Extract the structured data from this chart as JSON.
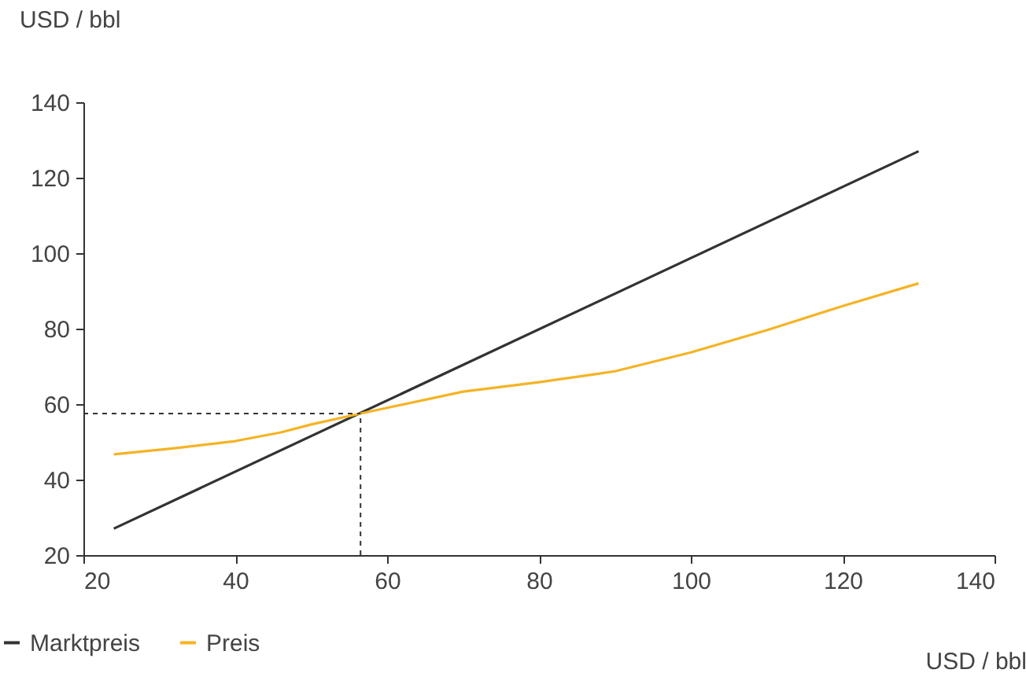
{
  "chart_data": {
    "type": "line",
    "xlabel": "USD / bbl",
    "ylabel": "USD / bbl",
    "xlim": [
      20,
      140
    ],
    "xticks": [
      20,
      40,
      60,
      80,
      100,
      120,
      140
    ],
    "ylim": [
      20,
      140
    ],
    "yticks": [
      20,
      40,
      60,
      80,
      100,
      120,
      140
    ],
    "grid": false,
    "legend": "bottom left",
    "line_style": "solid",
    "series": [
      {
        "name": "Marktpreis",
        "color": "#333333",
        "x": [
          24,
          130
        ],
        "values": [
          27,
          127
        ]
      },
      {
        "name": "Preis",
        "color": "#f5b324",
        "x": [
          24,
          32,
          40,
          46,
          50,
          56.5,
          60,
          70,
          80,
          90,
          100,
          110,
          120,
          130
        ],
        "values": [
          46.7,
          48.3,
          50.2,
          52.5,
          54.6,
          57.5,
          59,
          63.3,
          65.8,
          68.7,
          73.7,
          79.6,
          86,
          92
        ]
      }
    ],
    "ref_lines": [
      {
        "axis": "x",
        "value": 56.5,
        "line_style": "dashed"
      },
      {
        "axis": "y",
        "value": 57.5,
        "line_style": "dashed"
      }
    ]
  }
}
